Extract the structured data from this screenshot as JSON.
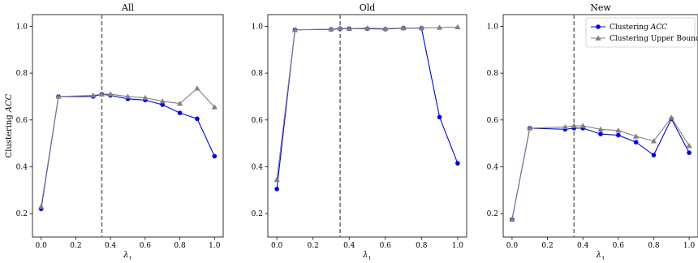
{
  "chart_data": [
    {
      "type": "line",
      "title": "All",
      "xlabel": "λ",
      "xlabel_subscript": "1",
      "ylabel": "Clustering ",
      "ylabel_italic": "ACC",
      "xlim": [
        -0.05,
        1.05
      ],
      "ylim": [
        0.1,
        1.05
      ],
      "xticks": [
        "0.0",
        "0.2",
        "0.4",
        "0.6",
        "0.8",
        "1.0"
      ],
      "yticks": [
        "0.2",
        "0.4",
        "0.6",
        "0.8",
        "1.0"
      ],
      "vline_x": 0.35,
      "x": [
        0.0,
        0.1,
        0.3,
        0.35,
        0.4,
        0.5,
        0.6,
        0.7,
        0.8,
        0.9,
        1.0
      ],
      "series": [
        {
          "name": "Clustering ACC",
          "color": "#0000ee",
          "marker": "circle",
          "values": [
            0.22,
            0.7,
            0.7,
            0.71,
            0.705,
            0.69,
            0.685,
            0.665,
            0.63,
            0.605,
            0.445
          ]
        },
        {
          "name": "Clustering Upper Bound",
          "color": "#808080",
          "marker": "triangle",
          "values": [
            0.23,
            0.7,
            0.705,
            0.71,
            0.71,
            0.7,
            0.695,
            0.68,
            0.67,
            0.735,
            0.655
          ]
        }
      ],
      "grid": false
    },
    {
      "type": "line",
      "title": "Old",
      "xlabel": "λ",
      "xlabel_subscript": "1",
      "ylabel": "",
      "xlim": [
        -0.05,
        1.05
      ],
      "ylim": [
        0.1,
        1.05
      ],
      "xticks": [
        "0.0",
        "0.2",
        "0.4",
        "0.6",
        "0.8",
        "1.0"
      ],
      "yticks": [
        "0.2",
        "0.4",
        "0.6",
        "0.8",
        "1.0"
      ],
      "vline_x": 0.35,
      "x": [
        0.0,
        0.1,
        0.3,
        0.35,
        0.4,
        0.5,
        0.6,
        0.7,
        0.8,
        0.9,
        1.0
      ],
      "series": [
        {
          "name": "Clustering ACC",
          "color": "#0000ee",
          "marker": "circle",
          "values": [
            0.305,
            0.985,
            0.987,
            0.99,
            0.99,
            0.99,
            0.988,
            0.992,
            0.992,
            0.612,
            0.415
          ]
        },
        {
          "name": "Clustering Upper Bound",
          "color": "#808080",
          "marker": "triangle",
          "values": [
            0.345,
            0.985,
            0.988,
            0.992,
            0.99,
            0.992,
            0.99,
            0.993,
            0.993,
            0.995,
            0.997
          ]
        }
      ],
      "grid": false
    },
    {
      "type": "line",
      "title": "New",
      "xlabel": "λ",
      "xlabel_subscript": "1",
      "ylabel": "",
      "xlim": [
        -0.05,
        1.05
      ],
      "ylim": [
        0.1,
        1.05
      ],
      "xticks": [
        "0.0",
        "0.2",
        "0.4",
        "0.6",
        "0.8",
        "1.0"
      ],
      "yticks": [
        "0.2",
        "0.4",
        "0.6",
        "0.8",
        "1.0"
      ],
      "vline_x": 0.35,
      "x": [
        0.0,
        0.1,
        0.3,
        0.35,
        0.4,
        0.5,
        0.6,
        0.7,
        0.8,
        0.9,
        1.0
      ],
      "series": [
        {
          "name": "Clustering ACC",
          "color": "#0000ee",
          "marker": "circle",
          "values": [
            0.175,
            0.565,
            0.56,
            0.565,
            0.565,
            0.54,
            0.535,
            0.505,
            0.45,
            0.605,
            0.46
          ]
        },
        {
          "name": "Clustering Upper Bound",
          "color": "#808080",
          "marker": "triangle",
          "values": [
            0.175,
            0.565,
            0.57,
            0.575,
            0.575,
            0.56,
            0.555,
            0.53,
            0.51,
            0.61,
            0.49
          ]
        }
      ],
      "grid": false,
      "legend": {
        "placement": "top-right",
        "entries": [
          {
            "label": "Clustering ",
            "label_italic": "ACC",
            "color": "#0000ee",
            "marker": "circle"
          },
          {
            "label": "Clustering Upper Bound",
            "label_italic": "",
            "color": "#808080",
            "marker": "triangle"
          }
        ]
      }
    }
  ]
}
